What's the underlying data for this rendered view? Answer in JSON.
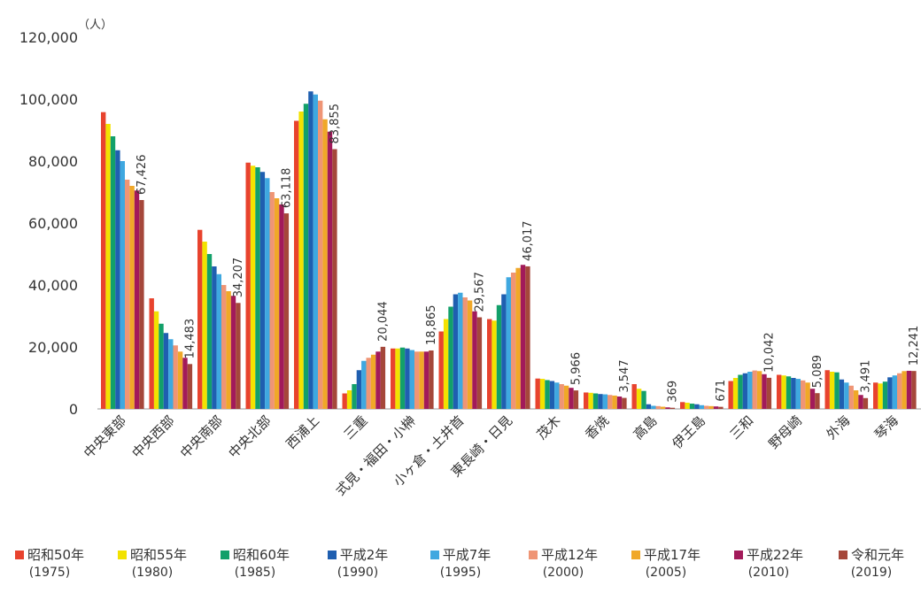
{
  "chart_data": {
    "type": "bar",
    "unit": "（人）",
    "ylim": [
      0,
      120000
    ],
    "yticks": [
      "0",
      "20,000",
      "40,000",
      "60,000",
      "80,000",
      "100,000",
      "120,000"
    ],
    "grid": false,
    "legend_position": "bottom",
    "categories": [
      "中央東部",
      "中央西部",
      "中央南部",
      "中央北部",
      "西浦上",
      "三重",
      "式見・福田・小榊",
      "小ヶ倉・土井首",
      "東長崎・日見",
      "茂木",
      "香焼",
      "高島",
      "伊王島",
      "三和",
      "野母崎",
      "外海",
      "琴海"
    ],
    "series": [
      {
        "name": "昭和50年",
        "year": "(1975)",
        "color": "#e8432e",
        "values": [
          95800,
          35700,
          57800,
          79500,
          93000,
          5000,
          19500,
          25000,
          29000,
          9800,
          5300,
          8000,
          2200,
          9000,
          11000,
          12500,
          8500
        ]
      },
      {
        "name": "昭和55年",
        "year": "(1980)",
        "color": "#f2e200",
        "values": [
          92000,
          31500,
          54000,
          78500,
          96000,
          6000,
          19500,
          29000,
          28500,
          9700,
          5200,
          6500,
          2000,
          10000,
          10800,
          12000,
          8200
        ]
      },
      {
        "name": "昭和60年",
        "year": "(1985)",
        "color": "#12a06a",
        "values": [
          88000,
          27500,
          50000,
          78000,
          98500,
          8000,
          19800,
          33000,
          33500,
          9300,
          5000,
          5800,
          1700,
          11000,
          10500,
          11800,
          8800
        ]
      },
      {
        "name": "平成2年",
        "year": "(1990)",
        "color": "#1f5fb0",
        "values": [
          83500,
          24500,
          46000,
          76500,
          102500,
          12500,
          19500,
          37000,
          37000,
          9000,
          4800,
          1500,
          1500,
          11500,
          10000,
          9500,
          10200
        ]
      },
      {
        "name": "平成7年",
        "year": "(1995)",
        "color": "#3fa8e0",
        "values": [
          80000,
          22500,
          43500,
          74500,
          101500,
          15500,
          19000,
          37500,
          42500,
          8500,
          4700,
          1000,
          1200,
          12000,
          9700,
          8500,
          10800
        ]
      },
      {
        "name": "平成12年",
        "year": "(2000)",
        "color": "#ef9575",
        "values": [
          74000,
          20500,
          40000,
          70000,
          99500,
          16500,
          18500,
          36000,
          44000,
          8000,
          4500,
          900,
          1000,
          12400,
          9200,
          7500,
          11500
        ]
      },
      {
        "name": "平成17年",
        "year": "(2005)",
        "color": "#f0a828",
        "values": [
          72000,
          18500,
          38000,
          68000,
          93500,
          17500,
          18500,
          35000,
          45500,
          7500,
          4300,
          700,
          900,
          12200,
          8500,
          6000,
          12200
        ]
      },
      {
        "name": "平成22年",
        "year": "(2010)",
        "color": "#a21a5a",
        "values": [
          70500,
          16500,
          36500,
          66000,
          89500,
          18500,
          18500,
          31500,
          46500,
          6800,
          4000,
          500,
          800,
          11200,
          6500,
          4500,
          12300
        ]
      },
      {
        "name": "令和元年",
        "year": "(2019)",
        "color": "#a5473a",
        "values": [
          67426,
          14483,
          34207,
          63118,
          83855,
          20044,
          18865,
          29567,
          46017,
          5966,
          3547,
          369,
          671,
          10042,
          5089,
          3491,
          12241
        ]
      }
    ],
    "data_labels": [
      "67,426",
      "14,483",
      "34,207",
      "63,118",
      "83,855",
      "20,044",
      "18,865",
      "29,567",
      "46,017",
      "5,966",
      "3,547",
      "369",
      "671",
      "10,042",
      "5,089",
      "3,491",
      "12,241"
    ]
  }
}
